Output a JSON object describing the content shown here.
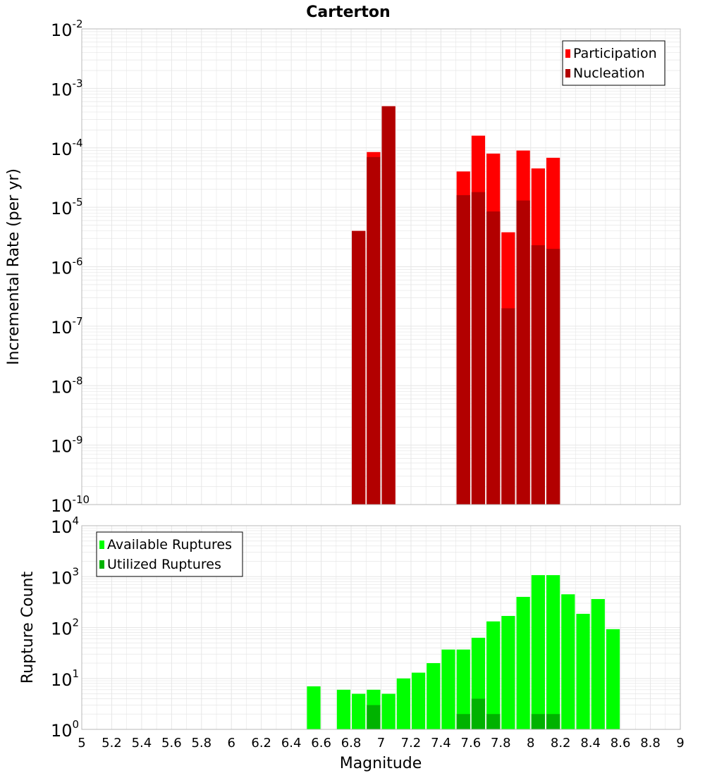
{
  "title": "Carterton",
  "xlabel": "Magnitude",
  "x_ticks": [
    "5",
    "5.2",
    "5.4",
    "5.6",
    "5.8",
    "6",
    "6.2",
    "6.4",
    "6.6",
    "6.8",
    "7",
    "7.2",
    "7.4",
    "7.6",
    "7.8",
    "8",
    "8.2",
    "8.4",
    "8.6",
    "8.8",
    "9"
  ],
  "colors": {
    "participation": "#ff0000",
    "nucleation": "#b20000",
    "available": "#00ff00",
    "utilized": "#00b200",
    "grid": "#e6e6e6",
    "border": "#b8b8b8"
  },
  "chart_data": [
    {
      "type": "bar",
      "scale": "log",
      "ylabel": "Incremental Rate (per yr)",
      "ylim_exp": [
        -10,
        -2
      ],
      "y_ticks": [
        {
          "base": "10",
          "exp": "-2"
        },
        {
          "base": "10",
          "exp": "-3"
        },
        {
          "base": "10",
          "exp": "-4"
        },
        {
          "base": "10",
          "exp": "-5"
        },
        {
          "base": "10",
          "exp": "-6"
        },
        {
          "base": "10",
          "exp": "-7"
        },
        {
          "base": "10",
          "exp": "-8"
        },
        {
          "base": "10",
          "exp": "-9"
        },
        {
          "base": "10",
          "exp": "-10"
        }
      ],
      "xlim": [
        5,
        9
      ],
      "bin_width": 0.1,
      "legend_position": "top-right",
      "series": [
        {
          "name": "Participation",
          "x": [
            6.85,
            6.95,
            7.05,
            7.55,
            7.65,
            7.75,
            7.85,
            7.95,
            8.05,
            8.15
          ],
          "values": [
            4e-06,
            8.5e-05,
            0.0005,
            4e-05,
            0.00016,
            8e-05,
            3.8e-06,
            9e-05,
            4.5e-05,
            6.8e-05
          ]
        },
        {
          "name": "Nucleation",
          "x": [
            6.85,
            6.95,
            7.05,
            7.55,
            7.65,
            7.75,
            7.85,
            7.95,
            8.05,
            8.15
          ],
          "values": [
            4e-06,
            7e-05,
            0.0005,
            1.6e-05,
            1.8e-05,
            8.5e-06,
            2e-07,
            1.3e-05,
            2.3e-06,
            2e-06
          ]
        }
      ]
    },
    {
      "type": "bar",
      "scale": "log",
      "ylabel": "Rupture Count",
      "ylim_exp": [
        0,
        4
      ],
      "y_ticks": [
        {
          "base": "10",
          "exp": "4"
        },
        {
          "base": "10",
          "exp": "3"
        },
        {
          "base": "10",
          "exp": "2"
        },
        {
          "base": "10",
          "exp": "1"
        },
        {
          "base": "10",
          "exp": "0"
        }
      ],
      "xlim": [
        5,
        9
      ],
      "bin_width": 0.1,
      "legend_position": "top-left",
      "series": [
        {
          "name": "Available Ruptures",
          "x": [
            6.55,
            6.75,
            6.85,
            6.95,
            7.05,
            7.15,
            7.25,
            7.35,
            7.45,
            7.55,
            7.65,
            7.75,
            7.85,
            7.95,
            8.05,
            8.15,
            8.25,
            8.35,
            8.45,
            8.55
          ],
          "values": [
            7,
            6,
            5,
            6,
            5,
            10,
            13,
            20,
            37,
            37,
            63,
            132,
            169,
            400,
            1070,
            1070,
            450,
            186,
            363,
            93
          ]
        },
        {
          "name": "Utilized Ruptures",
          "x": [
            6.85,
            6.95,
            7.05,
            7.55,
            7.65,
            7.75,
            7.85,
            7.95,
            8.05,
            8.15
          ],
          "values": [
            1,
            3,
            1,
            2,
            4,
            2,
            1,
            1,
            2,
            2
          ]
        }
      ]
    }
  ]
}
